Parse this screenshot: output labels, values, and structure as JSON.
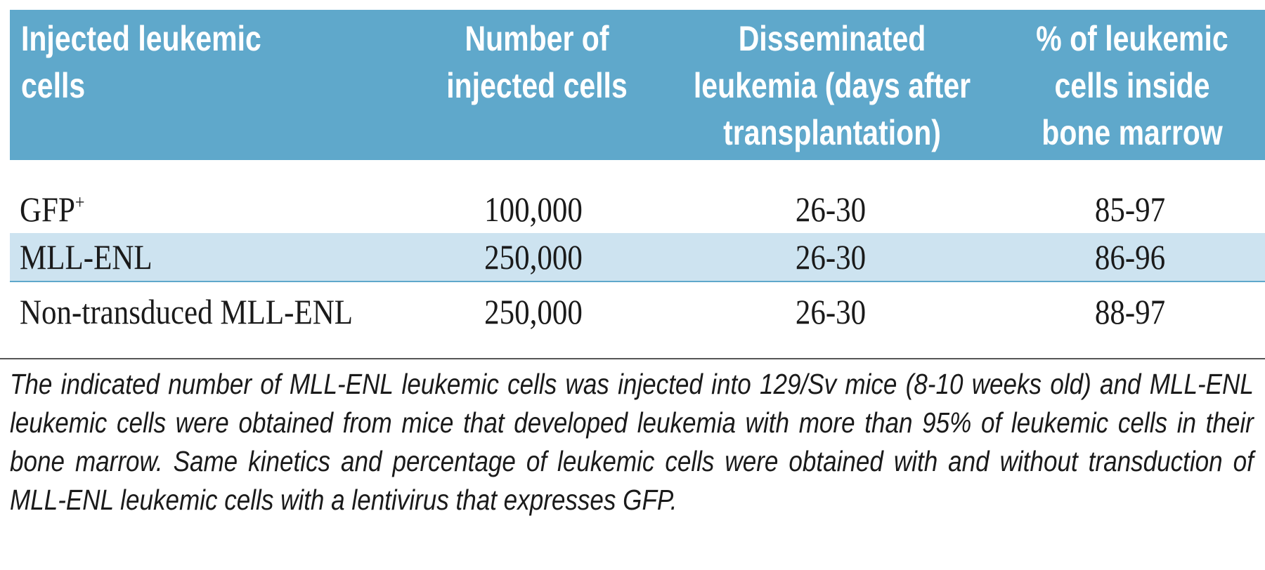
{
  "table": {
    "headers": [
      [
        "Injected leukemic",
        "cells"
      ],
      [
        "Number of",
        "injected cells"
      ],
      [
        "Disseminated",
        "leukemia (days after",
        "transplantation)"
      ],
      [
        "% of leukemic",
        "cells inside",
        "bone marrow"
      ]
    ],
    "rows": [
      {
        "cells": [
          "GFP",
          "100,000",
          "26-30",
          "85-97"
        ],
        "superscript": "+",
        "shaded": false
      },
      {
        "cells": [
          "MLL-ENL",
          "250,000",
          "26-30",
          "86-96"
        ],
        "shaded": true
      },
      {
        "cells": [
          "Non-transduced MLL-ENL",
          "250,000",
          "26-30",
          "88-97"
        ],
        "shaded": false
      }
    ]
  },
  "footnote": "The indicated number of MLL-ENL leukemic cells was injected into 129/Sv mice (8-10 weeks old) and MLL-ENL leukemic cells were obtained from mice that developed leukemia with more than 95% of leukemic cells in their bone marrow. Same kinetics and percentage of leukemic cells were obtained with and without transduction of MLL-ENL leukemic cells with a lentivirus that expresses GFP.",
  "colors": {
    "header_bg": "#5fa8cb",
    "header_text": "#ffffff",
    "shaded_row_bg": "#cde3f0"
  }
}
